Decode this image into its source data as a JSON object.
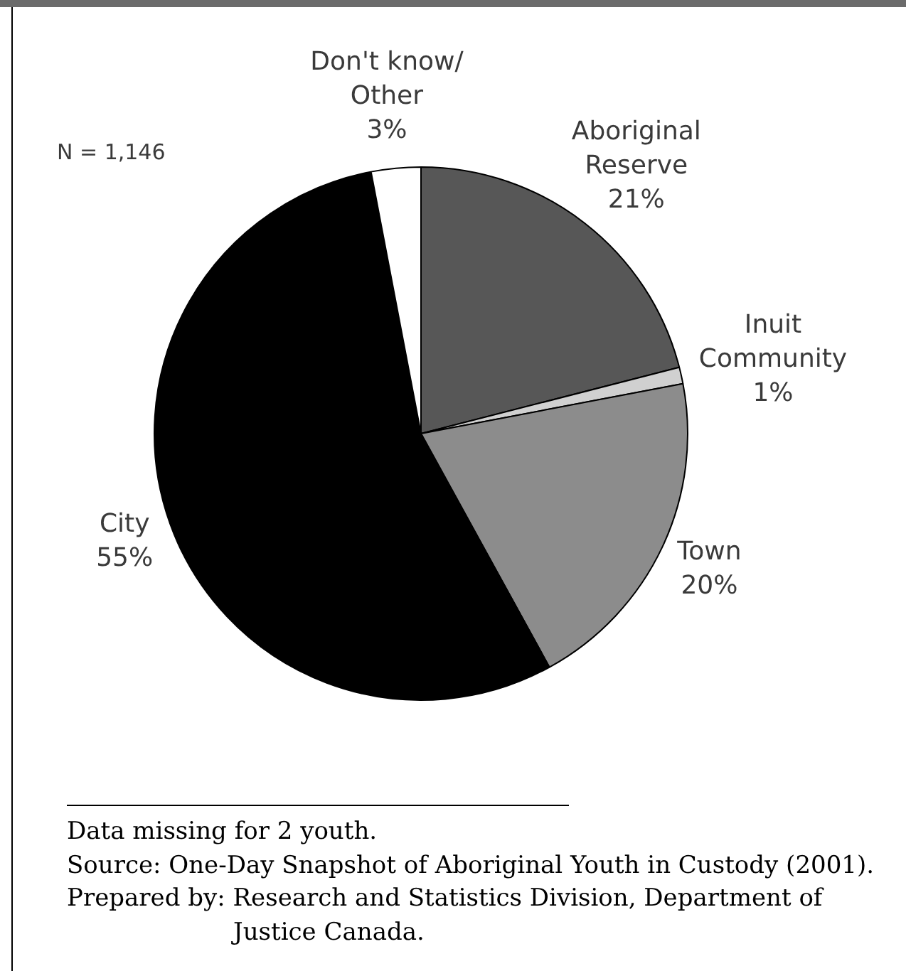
{
  "chart_data": {
    "type": "pie",
    "categories": [
      "Aboriginal Reserve",
      "Inuit Community",
      "Town",
      "City",
      "Don't know/ Other"
    ],
    "values": [
      21,
      1,
      20,
      55,
      3
    ],
    "value_labels": [
      "21%",
      "1%",
      "20%",
      "55%",
      "3%"
    ],
    "colors": [
      "#575757",
      "#d0d0d0",
      "#8c8c8c",
      "#000000",
      "#ffffff"
    ],
    "annotations": [
      "N = 1,146",
      "Data missing for 2 youth.",
      "Source: One-Day Snapshot of Aboriginal Youth in Custody (2001).",
      "Prepared by: Research and Statistics Division, Department of Justice Canada."
    ]
  }
}
